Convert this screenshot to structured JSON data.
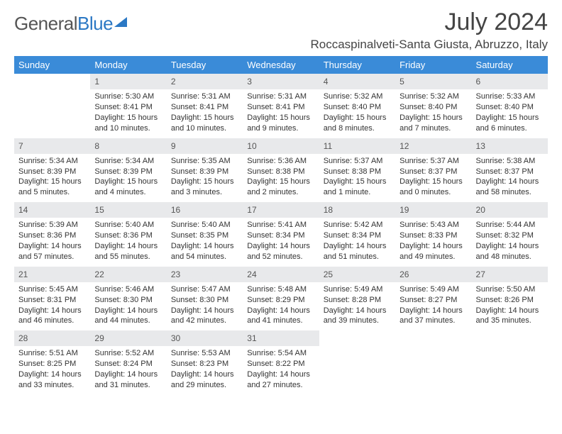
{
  "brand": {
    "part1": "General",
    "part2": "Blue"
  },
  "title": "July 2024",
  "location": "Roccaspinalveti-Santa Giusta, Abruzzo, Italy",
  "weekdays": [
    "Sunday",
    "Monday",
    "Tuesday",
    "Wednesday",
    "Thursday",
    "Friday",
    "Saturday"
  ],
  "colors": {
    "header_bg": "#3a8bd8",
    "header_text": "#ffffff",
    "daynum_bg": "#e8e9eb",
    "text": "#333333",
    "brand_grey": "#555555",
    "brand_blue": "#2b78c4"
  },
  "weeks": [
    [
      {
        "n": "",
        "sr": "",
        "ss": "",
        "dl": "",
        "empty": true
      },
      {
        "n": "1",
        "sr": "Sunrise: 5:30 AM",
        "ss": "Sunset: 8:41 PM",
        "dl": "Daylight: 15 hours and 10 minutes."
      },
      {
        "n": "2",
        "sr": "Sunrise: 5:31 AM",
        "ss": "Sunset: 8:41 PM",
        "dl": "Daylight: 15 hours and 10 minutes."
      },
      {
        "n": "3",
        "sr": "Sunrise: 5:31 AM",
        "ss": "Sunset: 8:41 PM",
        "dl": "Daylight: 15 hours and 9 minutes."
      },
      {
        "n": "4",
        "sr": "Sunrise: 5:32 AM",
        "ss": "Sunset: 8:40 PM",
        "dl": "Daylight: 15 hours and 8 minutes."
      },
      {
        "n": "5",
        "sr": "Sunrise: 5:32 AM",
        "ss": "Sunset: 8:40 PM",
        "dl": "Daylight: 15 hours and 7 minutes."
      },
      {
        "n": "6",
        "sr": "Sunrise: 5:33 AM",
        "ss": "Sunset: 8:40 PM",
        "dl": "Daylight: 15 hours and 6 minutes."
      }
    ],
    [
      {
        "n": "7",
        "sr": "Sunrise: 5:34 AM",
        "ss": "Sunset: 8:39 PM",
        "dl": "Daylight: 15 hours and 5 minutes."
      },
      {
        "n": "8",
        "sr": "Sunrise: 5:34 AM",
        "ss": "Sunset: 8:39 PM",
        "dl": "Daylight: 15 hours and 4 minutes."
      },
      {
        "n": "9",
        "sr": "Sunrise: 5:35 AM",
        "ss": "Sunset: 8:39 PM",
        "dl": "Daylight: 15 hours and 3 minutes."
      },
      {
        "n": "10",
        "sr": "Sunrise: 5:36 AM",
        "ss": "Sunset: 8:38 PM",
        "dl": "Daylight: 15 hours and 2 minutes."
      },
      {
        "n": "11",
        "sr": "Sunrise: 5:37 AM",
        "ss": "Sunset: 8:38 PM",
        "dl": "Daylight: 15 hours and 1 minute."
      },
      {
        "n": "12",
        "sr": "Sunrise: 5:37 AM",
        "ss": "Sunset: 8:37 PM",
        "dl": "Daylight: 15 hours and 0 minutes."
      },
      {
        "n": "13",
        "sr": "Sunrise: 5:38 AM",
        "ss": "Sunset: 8:37 PM",
        "dl": "Daylight: 14 hours and 58 minutes."
      }
    ],
    [
      {
        "n": "14",
        "sr": "Sunrise: 5:39 AM",
        "ss": "Sunset: 8:36 PM",
        "dl": "Daylight: 14 hours and 57 minutes."
      },
      {
        "n": "15",
        "sr": "Sunrise: 5:40 AM",
        "ss": "Sunset: 8:36 PM",
        "dl": "Daylight: 14 hours and 55 minutes."
      },
      {
        "n": "16",
        "sr": "Sunrise: 5:40 AM",
        "ss": "Sunset: 8:35 PM",
        "dl": "Daylight: 14 hours and 54 minutes."
      },
      {
        "n": "17",
        "sr": "Sunrise: 5:41 AM",
        "ss": "Sunset: 8:34 PM",
        "dl": "Daylight: 14 hours and 52 minutes."
      },
      {
        "n": "18",
        "sr": "Sunrise: 5:42 AM",
        "ss": "Sunset: 8:34 PM",
        "dl": "Daylight: 14 hours and 51 minutes."
      },
      {
        "n": "19",
        "sr": "Sunrise: 5:43 AM",
        "ss": "Sunset: 8:33 PM",
        "dl": "Daylight: 14 hours and 49 minutes."
      },
      {
        "n": "20",
        "sr": "Sunrise: 5:44 AM",
        "ss": "Sunset: 8:32 PM",
        "dl": "Daylight: 14 hours and 48 minutes."
      }
    ],
    [
      {
        "n": "21",
        "sr": "Sunrise: 5:45 AM",
        "ss": "Sunset: 8:31 PM",
        "dl": "Daylight: 14 hours and 46 minutes."
      },
      {
        "n": "22",
        "sr": "Sunrise: 5:46 AM",
        "ss": "Sunset: 8:30 PM",
        "dl": "Daylight: 14 hours and 44 minutes."
      },
      {
        "n": "23",
        "sr": "Sunrise: 5:47 AM",
        "ss": "Sunset: 8:30 PM",
        "dl": "Daylight: 14 hours and 42 minutes."
      },
      {
        "n": "24",
        "sr": "Sunrise: 5:48 AM",
        "ss": "Sunset: 8:29 PM",
        "dl": "Daylight: 14 hours and 41 minutes."
      },
      {
        "n": "25",
        "sr": "Sunrise: 5:49 AM",
        "ss": "Sunset: 8:28 PM",
        "dl": "Daylight: 14 hours and 39 minutes."
      },
      {
        "n": "26",
        "sr": "Sunrise: 5:49 AM",
        "ss": "Sunset: 8:27 PM",
        "dl": "Daylight: 14 hours and 37 minutes."
      },
      {
        "n": "27",
        "sr": "Sunrise: 5:50 AM",
        "ss": "Sunset: 8:26 PM",
        "dl": "Daylight: 14 hours and 35 minutes."
      }
    ],
    [
      {
        "n": "28",
        "sr": "Sunrise: 5:51 AM",
        "ss": "Sunset: 8:25 PM",
        "dl": "Daylight: 14 hours and 33 minutes."
      },
      {
        "n": "29",
        "sr": "Sunrise: 5:52 AM",
        "ss": "Sunset: 8:24 PM",
        "dl": "Daylight: 14 hours and 31 minutes."
      },
      {
        "n": "30",
        "sr": "Sunrise: 5:53 AM",
        "ss": "Sunset: 8:23 PM",
        "dl": "Daylight: 14 hours and 29 minutes."
      },
      {
        "n": "31",
        "sr": "Sunrise: 5:54 AM",
        "ss": "Sunset: 8:22 PM",
        "dl": "Daylight: 14 hours and 27 minutes."
      },
      {
        "n": "",
        "sr": "",
        "ss": "",
        "dl": "",
        "empty": true
      },
      {
        "n": "",
        "sr": "",
        "ss": "",
        "dl": "",
        "empty": true
      },
      {
        "n": "",
        "sr": "",
        "ss": "",
        "dl": "",
        "empty": true
      }
    ]
  ]
}
